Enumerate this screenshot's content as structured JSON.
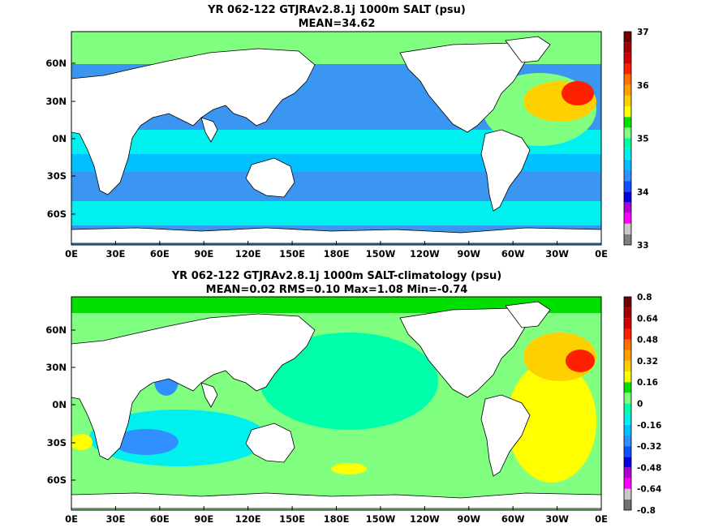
{
  "chart_data": [
    {
      "type": "heatmap",
      "title": "YR 062-122 GTJRAv2.8.1j 1000m SALT (psu)",
      "subtitle": "MEAN=34.62",
      "x_ticks": [
        "0E",
        "30E",
        "60E",
        "90E",
        "120E",
        "150E",
        "180E",
        "150W",
        "120W",
        "90W",
        "60W",
        "30W",
        "0E"
      ],
      "y_ticks": [
        "60N",
        "30N",
        "0N",
        "30S",
        "60S"
      ],
      "colorbar": {
        "ticks": [
          "37",
          "36",
          "35",
          "34",
          "33"
        ],
        "min": 33,
        "max": 37,
        "colors": [
          "#7f7f7f",
          "#c8c8c8",
          "#ff00ff",
          "#b000d0",
          "#0000e0",
          "#1050ff",
          "#3090ff",
          "#00c0ff",
          "#00f0f0",
          "#00ffaa",
          "#80ff80",
          "#00e000",
          "#ffff00",
          "#ffd000",
          "#ffa000",
          "#ff7000",
          "#ff2000",
          "#d00000",
          "#a00000",
          "#700000"
        ]
      },
      "field": {
        "base": "#3a96f0",
        "features": "mid-depth salinity; high in N Atlantic/Mediterranean outflow, low in N Pacific"
      }
    },
    {
      "type": "heatmap",
      "title": "YR 062-122 GTJRAv2.8.1j 1000m SALT-climatology (psu)",
      "subtitle": "MEAN=0.02   RMS=0.10   Max=1.08   Min=-0.74",
      "x_ticks": [
        "0E",
        "30E",
        "60E",
        "90E",
        "120E",
        "150E",
        "180E",
        "150W",
        "120W",
        "90W",
        "60W",
        "30W",
        "0E"
      ],
      "y_ticks": [
        "60N",
        "30N",
        "0N",
        "30S",
        "60S"
      ],
      "colorbar": {
        "ticks": [
          "0.8",
          "0.64",
          "0.48",
          "0.32",
          "0.16",
          "0",
          "-0.16",
          "-0.32",
          "-0.48",
          "-0.64",
          "-0.8"
        ],
        "min": -0.8,
        "max": 0.8,
        "colors": [
          "#707070",
          "#c8c8c8",
          "#ff00ff",
          "#b000d0",
          "#0000e0",
          "#1050ff",
          "#3090ff",
          "#00c0ff",
          "#00f0f0",
          "#00ffaa",
          "#80ff80",
          "#00e000",
          "#ffff00",
          "#ffd000",
          "#ffa000",
          "#ff7000",
          "#ff2000",
          "#d00000",
          "#a00000",
          "#700000"
        ]
      },
      "field": {
        "base": "#80ff80",
        "features": "anomaly; positive N Atlantic, negative Indian Ocean"
      }
    }
  ]
}
